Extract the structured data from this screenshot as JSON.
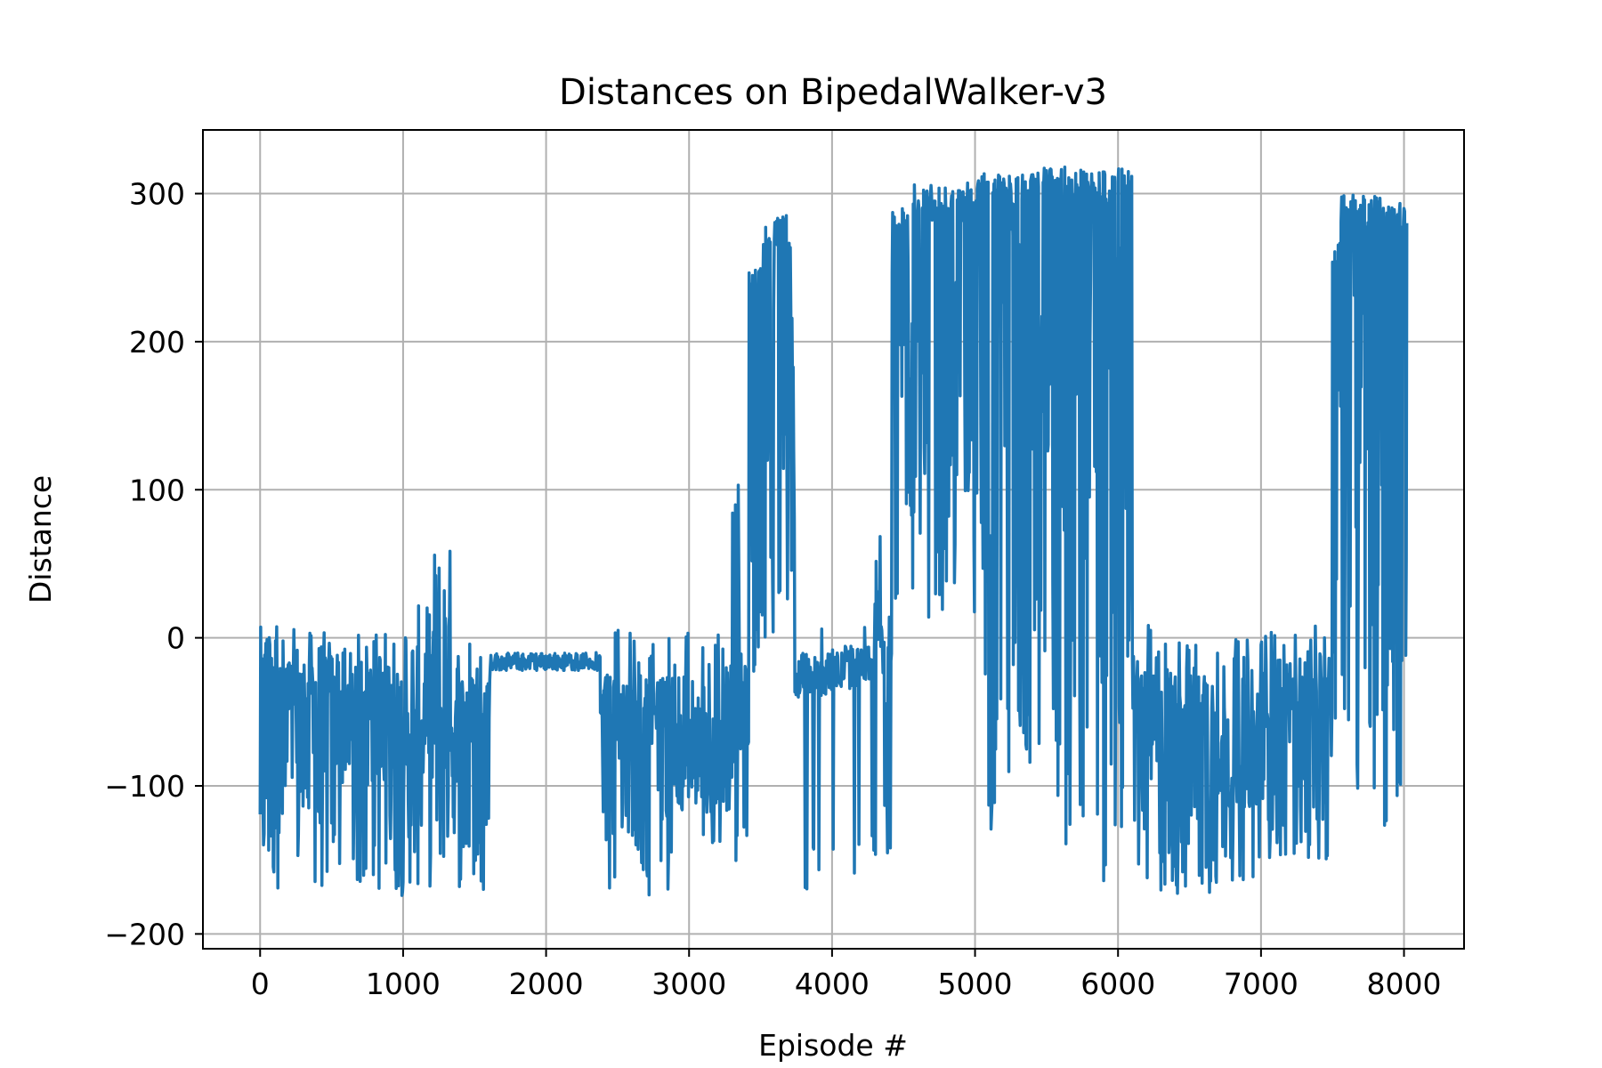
{
  "chart_data": {
    "type": "line",
    "title": "Distances on BipedalWalker-v3",
    "xlabel": "Episode #",
    "ylabel": "Distance",
    "xlim": [
      -400,
      8420
    ],
    "ylim": [
      -210,
      343
    ],
    "xticks": [
      0,
      1000,
      2000,
      3000,
      4000,
      5000,
      6000,
      7000,
      8000
    ],
    "yticks": [
      -200,
      -100,
      0,
      100,
      200,
      300
    ],
    "xtick_labels": [
      "0",
      "1000",
      "2000",
      "3000",
      "4000",
      "5000",
      "6000",
      "7000",
      "8000"
    ],
    "ytick_labels": [
      "−200",
      "−100",
      "0",
      "100",
      "200",
      "300"
    ],
    "grid": true,
    "legend": "none",
    "series_color": "#1f77b4",
    "series": [
      {
        "x_start": 0,
        "x_end": 8020,
        "segments": [
          {
            "x0": 0,
            "x1": 120,
            "lo": -175,
            "hi": 8,
            "base": -60,
            "fill": "solid"
          },
          {
            "x0": 120,
            "x1": 400,
            "lo": -170,
            "hi": 6,
            "base": -30,
            "fill": "dense"
          },
          {
            "x0": 400,
            "x1": 700,
            "lo": -173,
            "hi": 5,
            "base": -25,
            "fill": "dense"
          },
          {
            "x0": 700,
            "x1": 1000,
            "lo": -175,
            "hi": 9,
            "base": -30,
            "fill": "dense"
          },
          {
            "x0": 1000,
            "x1": 1200,
            "lo": -170,
            "hi": 22,
            "base": -60,
            "fill": "dense"
          },
          {
            "x0": 1200,
            "x1": 1350,
            "lo": -160,
            "hi": 66,
            "base": -50,
            "fill": "dense"
          },
          {
            "x0": 1350,
            "x1": 1610,
            "lo": -170,
            "hi": 7,
            "base": -40,
            "fill": "dense"
          },
          {
            "x0": 1610,
            "x1": 2380,
            "lo": -22,
            "hi": -10,
            "base": -14,
            "fill": "flat"
          },
          {
            "x0": 2380,
            "x1": 2900,
            "lo": -182,
            "hi": 6,
            "base": -40,
            "fill": "dense"
          },
          {
            "x0": 2900,
            "x1": 3100,
            "lo": -120,
            "hi": 8,
            "base": -100,
            "fill": "dense"
          },
          {
            "x0": 3100,
            "x1": 3300,
            "lo": -140,
            "hi": 5,
            "base": -105,
            "fill": "dense"
          },
          {
            "x0": 3300,
            "x1": 3420,
            "lo": -155,
            "hi": 110,
            "base": -60,
            "fill": "dense"
          },
          {
            "x0": 3420,
            "x1": 3520,
            "lo": -30,
            "hi": 250,
            "base": 100,
            "fill": "solid"
          },
          {
            "x0": 3520,
            "x1": 3740,
            "lo": 0,
            "hi": 288,
            "base": 270,
            "fill": "solid"
          },
          {
            "x0": 3740,
            "x1": 3980,
            "lo": -172,
            "hi": 6,
            "base": -15,
            "fill": "sparse"
          },
          {
            "x0": 3980,
            "x1": 4300,
            "lo": -172,
            "hi": 7,
            "base": -10,
            "fill": "sparse"
          },
          {
            "x0": 4300,
            "x1": 4420,
            "lo": -150,
            "hi": 70,
            "base": 0,
            "fill": "dense"
          },
          {
            "x0": 4420,
            "x1": 4560,
            "lo": 20,
            "hi": 290,
            "base": 270,
            "fill": "solid"
          },
          {
            "x0": 4560,
            "x1": 4940,
            "lo": 10,
            "hi": 306,
            "base": 300,
            "fill": "solid"
          },
          {
            "x0": 4940,
            "x1": 5400,
            "lo": -130,
            "hi": 314,
            "base": 305,
            "fill": "solid"
          },
          {
            "x0": 5400,
            "x1": 6100,
            "lo": -165,
            "hi": 318,
            "base": 310,
            "fill": "solid"
          },
          {
            "x0": 6100,
            "x1": 6700,
            "lo": -175,
            "hi": 9,
            "base": -40,
            "fill": "dense"
          },
          {
            "x0": 6700,
            "x1": 7000,
            "lo": -165,
            "hi": 0,
            "base": -100,
            "fill": "dense"
          },
          {
            "x0": 7000,
            "x1": 7500,
            "lo": -150,
            "hi": 8,
            "base": -40,
            "fill": "dense"
          },
          {
            "x0": 7500,
            "x1": 7560,
            "lo": -70,
            "hi": 270,
            "base": 150,
            "fill": "solid"
          },
          {
            "x0": 7560,
            "x1": 8020,
            "lo": -140,
            "hi": 299,
            "base": 285,
            "fill": "solid"
          }
        ]
      }
    ]
  }
}
